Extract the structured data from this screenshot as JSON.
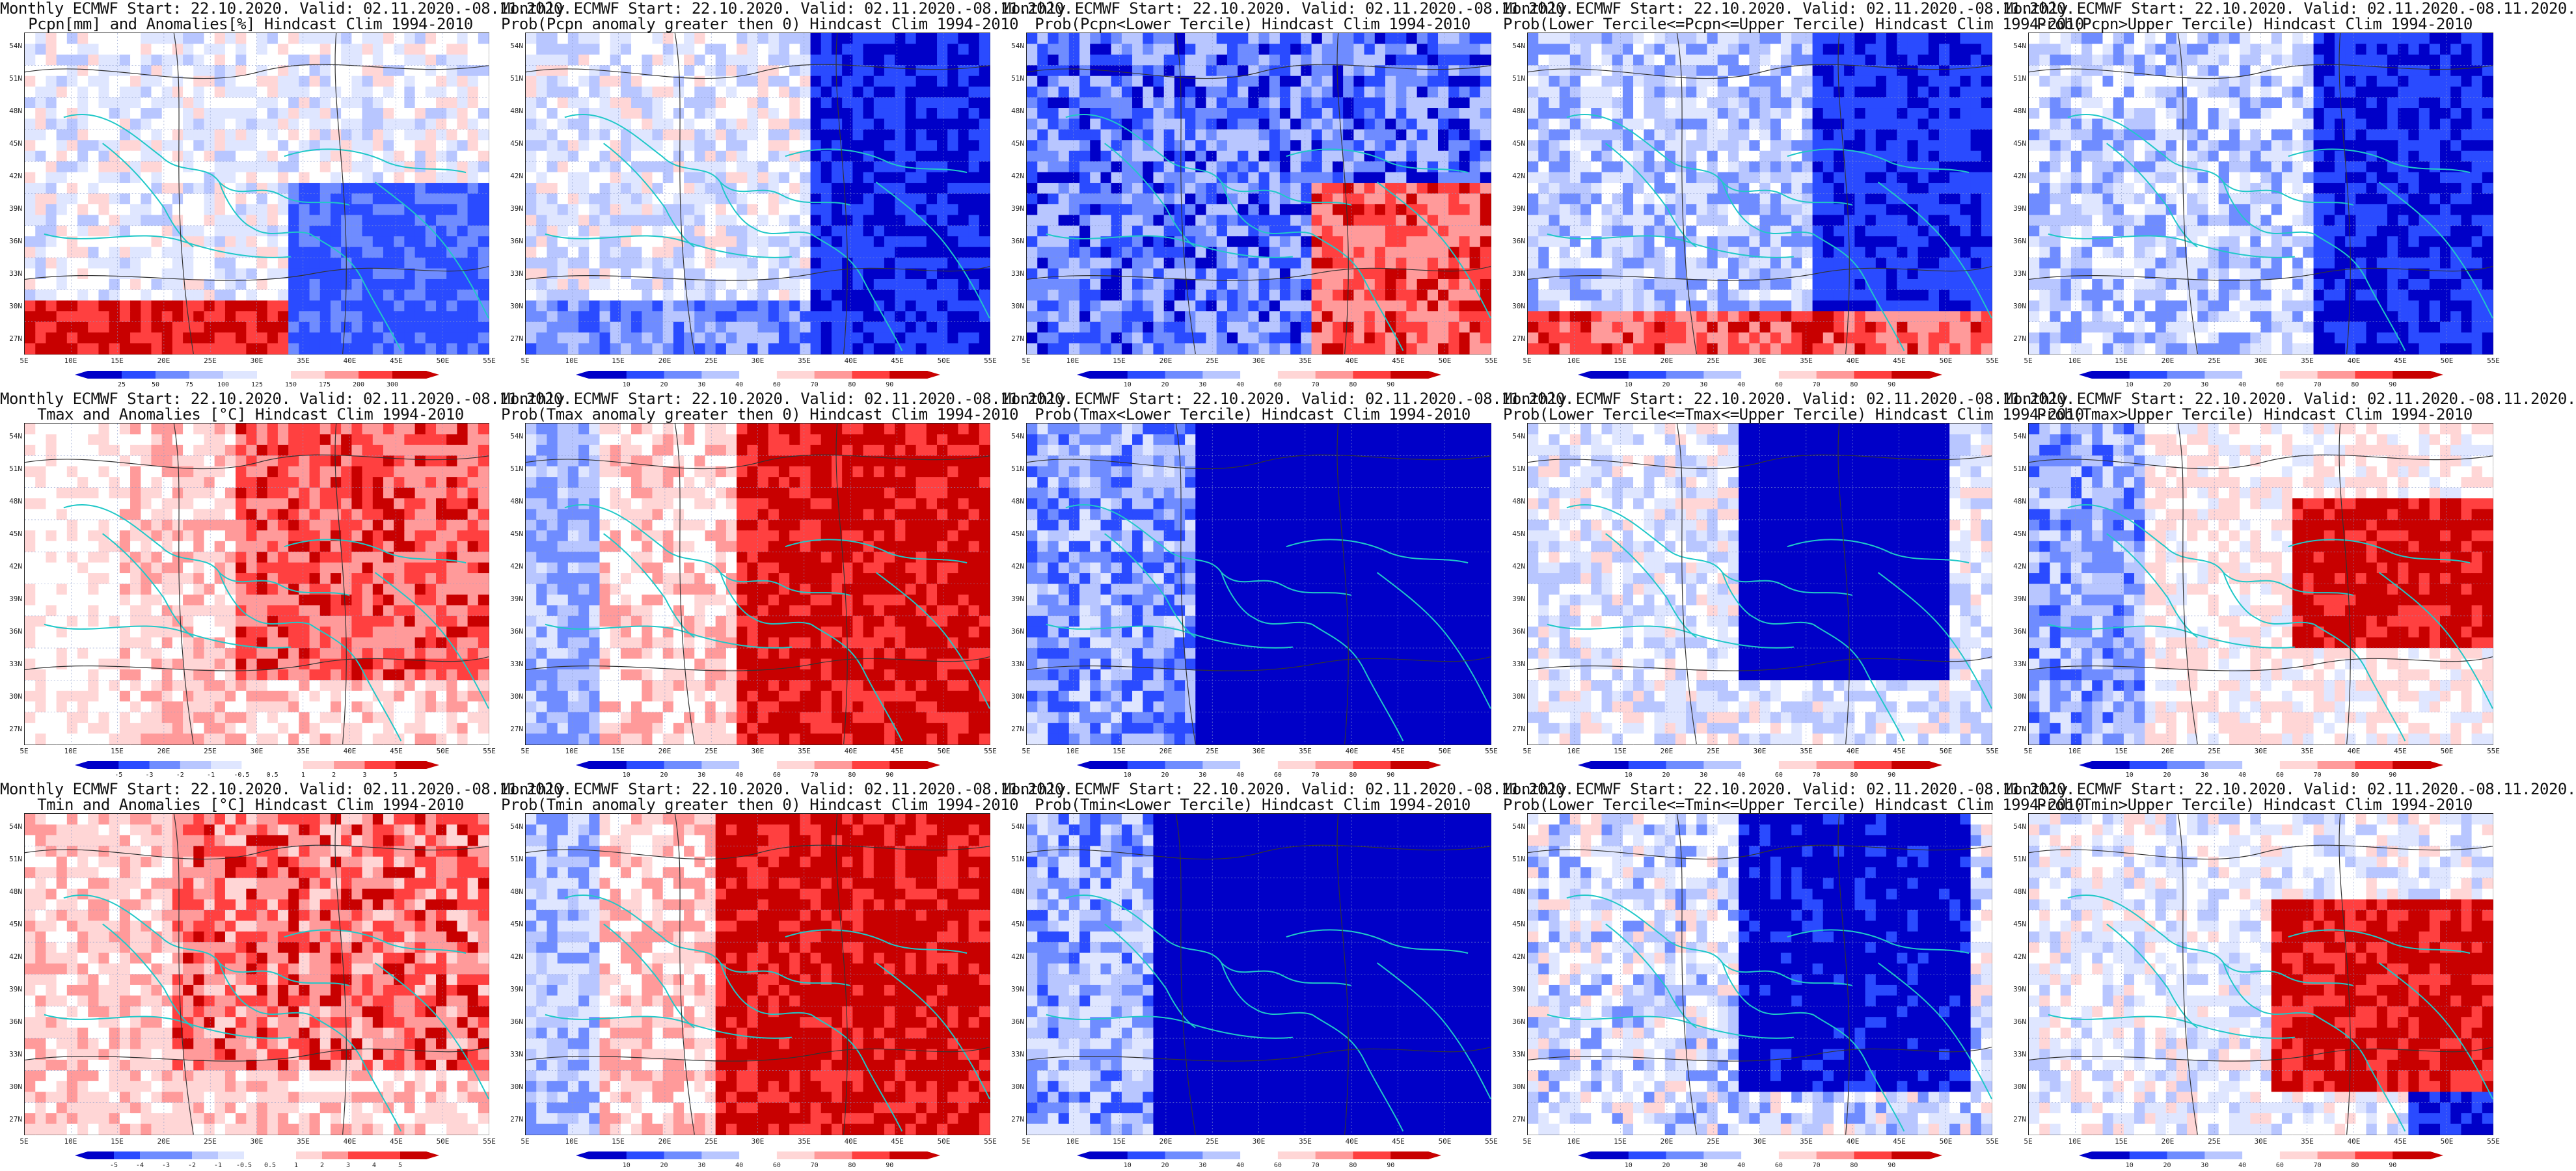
{
  "panels": [
    {
      "title1": "Monthly ECMWF Start: 22.10.2020. Valid: 02.11.2020.-08.11.2020.",
      "title2": "Pcpn[mm] and Anomalies[%] Hindcast Clim 1994-2010",
      "scheme": "anom",
      "colorbar": [
        "25",
        "50",
        "75",
        "100",
        "125",
        "150",
        "175",
        "200",
        "300"
      ]
    },
    {
      "title1": "Monthly ECMWF Start: 22.10.2020. Valid: 02.11.2020.-08.11.2020.",
      "title2": "Prob(Pcpn anomaly greater then 0) Hindcast Clim 1994-2010",
      "scheme": "prob",
      "colorbar": [
        "10",
        "20",
        "30",
        "40",
        "60",
        "70",
        "80",
        "90"
      ]
    },
    {
      "title1": "Monthly ECMWF Start: 22.10.2020. Valid: 02.11.2020.-08.11.2020.",
      "title2": "Prob(Pcpn<Lower Tercile) Hindcast Clim 1994-2010",
      "scheme": "prob",
      "colorbar": [
        "10",
        "20",
        "30",
        "40",
        "60",
        "70",
        "80",
        "90"
      ]
    },
    {
      "title1": "Monthly ECMWF Start: 22.10.2020. Valid: 02.11.2020.-08.11.2020.",
      "title2": "Prob(Lower Tercile<=Pcpn<=Upper Tercile) Hindcast Clim 1994-2010",
      "scheme": "prob",
      "colorbar": [
        "10",
        "20",
        "30",
        "40",
        "60",
        "70",
        "80",
        "90"
      ]
    },
    {
      "title1": "Monthly ECMWF Start: 22.10.2020. Valid: 02.11.2020.-08.11.2020.",
      "title2": "Prob(Pcpn>Upper Tercile) Hindcast Clim 1994-2010",
      "scheme": "prob",
      "colorbar": [
        "10",
        "20",
        "30",
        "40",
        "60",
        "70",
        "80",
        "90"
      ]
    },
    {
      "title1": "Monthly ECMWF Start: 22.10.2020. Valid: 02.11.2020.-08.11.2020.",
      "title2": "Tmax and Anomalies [°C] Hindcast Clim 1994-2010",
      "scheme": "anomT",
      "colorbar": [
        "-5",
        "-3",
        "-2",
        "-1",
        "-0.5",
        "0.5",
        "1",
        "2",
        "3",
        "5"
      ]
    },
    {
      "title1": "Monthly ECMWF Start: 22.10.2020. Valid: 02.11.2020.-08.11.2020.",
      "title2": "Prob(Tmax anomaly greater then 0) Hindcast Clim 1994-2010",
      "scheme": "prob",
      "colorbar": [
        "10",
        "20",
        "30",
        "40",
        "60",
        "70",
        "80",
        "90"
      ]
    },
    {
      "title1": "Monthly ECMWF Start: 22.10.2020. Valid: 02.11.2020.-08.11.2020.",
      "title2": "Prob(Tmax<Lower Tercile) Hindcast Clim 1994-2010",
      "scheme": "prob",
      "colorbar": [
        "10",
        "20",
        "30",
        "40",
        "60",
        "70",
        "80",
        "90"
      ]
    },
    {
      "title1": "Monthly ECMWF Start: 22.10.2020. Valid: 02.11.2020.-08.11.2020.",
      "title2": "Prob(Lower Tercile<=Tmax<=Upper Tercile) Hindcast Clim 1994-2010",
      "scheme": "prob",
      "colorbar": [
        "10",
        "20",
        "30",
        "40",
        "60",
        "70",
        "80",
        "90"
      ]
    },
    {
      "title1": "Monthly ECMWF Start: 22.10.2020. Valid: 02.11.2020.-08.11.2020.",
      "title2": "Prob(Tmax>Upper Tercile) Hindcast Clim 1994-2010",
      "scheme": "prob",
      "colorbar": [
        "10",
        "20",
        "30",
        "40",
        "60",
        "70",
        "80",
        "90"
      ]
    },
    {
      "title1": "Monthly ECMWF Start: 22.10.2020. Valid: 02.11.2020.-08.11.2020.",
      "title2": "Tmin and Anomalies [°C] Hindcast Clim 1994-2010",
      "scheme": "anomT",
      "colorbar": [
        "-5",
        "-4",
        "-3",
        "-2",
        "-1",
        "-0.5",
        "0.5",
        "1",
        "2",
        "3",
        "4",
        "5"
      ]
    },
    {
      "title1": "Monthly ECMWF Start: 22.10.2020. Valid: 02.11.2020.-08.11.2020.",
      "title2": "Prob(Tmin anomaly greater then 0) Hindcast Clim 1994-2010",
      "scheme": "prob",
      "colorbar": [
        "10",
        "20",
        "30",
        "40",
        "60",
        "70",
        "80",
        "90"
      ]
    },
    {
      "title1": "Monthly ECMWF Start: 22.10.2020. Valid: 02.11.2020.-08.11.2020.",
      "title2": "Prob(Tmin<Lower Tercile) Hindcast Clim 1994-2010",
      "scheme": "prob",
      "colorbar": [
        "10",
        "20",
        "30",
        "40",
        "60",
        "70",
        "80",
        "90"
      ]
    },
    {
      "title1": "Monthly ECMWF Start: 22.10.2020. Valid: 02.11.2020.-08.11.2020.",
      "title2": "Prob(Lower Tercile<=Tmin<=Upper Tercile) Hindcast Clim 1994-2010",
      "scheme": "prob",
      "colorbar": [
        "10",
        "20",
        "30",
        "40",
        "60",
        "70",
        "80",
        "90"
      ]
    },
    {
      "title1": "Monthly ECMWF Start: 22.10.2020. Valid: 02.11.2020.-08.11.2020.",
      "title2": "Prob(Tmin>Upper Tercile) Hindcast Clim 1994-2010",
      "scheme": "prob",
      "colorbar": [
        "10",
        "20",
        "30",
        "40",
        "60",
        "70",
        "80",
        "90"
      ]
    }
  ],
  "lat_labels": [
    "54N",
    "51N",
    "48N",
    "45N",
    "42N",
    "39N",
    "36N",
    "33N",
    "30N",
    "27N"
  ],
  "lon_labels": [
    "5E",
    "10E",
    "15E",
    "20E",
    "25E",
    "30E",
    "35E",
    "40E",
    "45E",
    "50E",
    "55E"
  ],
  "colors": {
    "deep_blue": "#0000c8",
    "blue": "#2a4bff",
    "mid_blue": "#6f8cff",
    "light_blue": "#b8c6ff",
    "pale_blue": "#dfe6ff",
    "white": "#ffffff",
    "pale_red": "#ffd6d6",
    "light_red": "#ff9a9a",
    "red": "#ff4040",
    "deep_red": "#c80000",
    "coast": "#20c8c8",
    "contour": "#333333"
  }
}
